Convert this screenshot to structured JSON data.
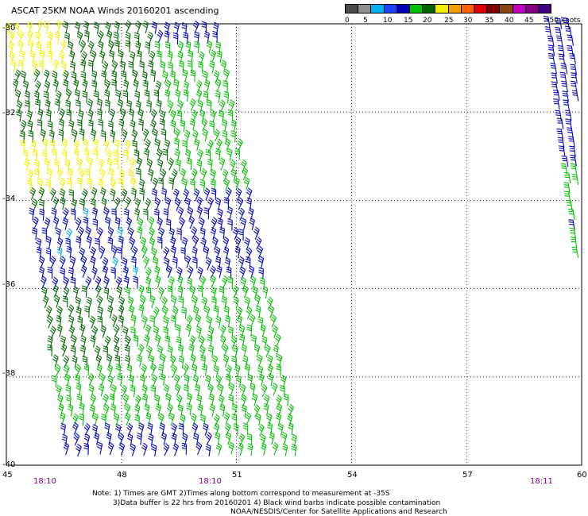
{
  "title": "ASCAT 25KM NOAA Winds 20160201 ascending",
  "colorbar": {
    "colors": [
      "#4a4a4a",
      "#8f8f8f",
      "#00b0f0",
      "#2040ff",
      "#0000b8",
      "#00c000",
      "#006400",
      "#f0f000",
      "#f0a000",
      "#ff6000",
      "#e00000",
      "#800000",
      "#8b4513",
      "#c000c0",
      "#800080",
      "#400080"
    ],
    "ticks": [
      "0",
      "5",
      "10",
      "15",
      "20",
      "25",
      "30",
      "35",
      "40",
      "45",
      ">50 knots"
    ]
  },
  "y_ticks": [
    "-30",
    "-32",
    "-34",
    "-36",
    "-38",
    "-40"
  ],
  "x_ticks": [
    "45",
    "48",
    "51",
    "54",
    "57",
    "60"
  ],
  "time_labels": [
    "18:10",
    "18:10",
    "18:11"
  ],
  "notes": [
    "Note: 1) Times are GMT 2)Times along bottom correspond to measurement at -35S",
    "3)Data buffer is 22 hrs from 20160201 4) Black wind barbs indicate possible contamination",
    "NOAA/NESDIS/Center for Satellite Applications and Research"
  ],
  "map": {
    "lon_range": [
      45,
      60
    ],
    "lat_range": [
      -30,
      -40
    ],
    "grid": "dotted",
    "swaths": [
      {
        "name": "left swath",
        "lon_top": [
          45.0,
          50.4
        ],
        "lon_bottom": [
          46.6,
          52.6
        ]
      },
      {
        "name": "right swath edge",
        "lon_top": [
          59.2,
          60.0
        ],
        "lon_bottom": [
          60.0,
          60.0
        ]
      }
    ],
    "wind_colors": {
      "light_green": "#00c000",
      "dark_green": "#006400",
      "blue": "#0000c0",
      "yellow": "#f0f000",
      "cyan": "#00b0f0"
    }
  }
}
